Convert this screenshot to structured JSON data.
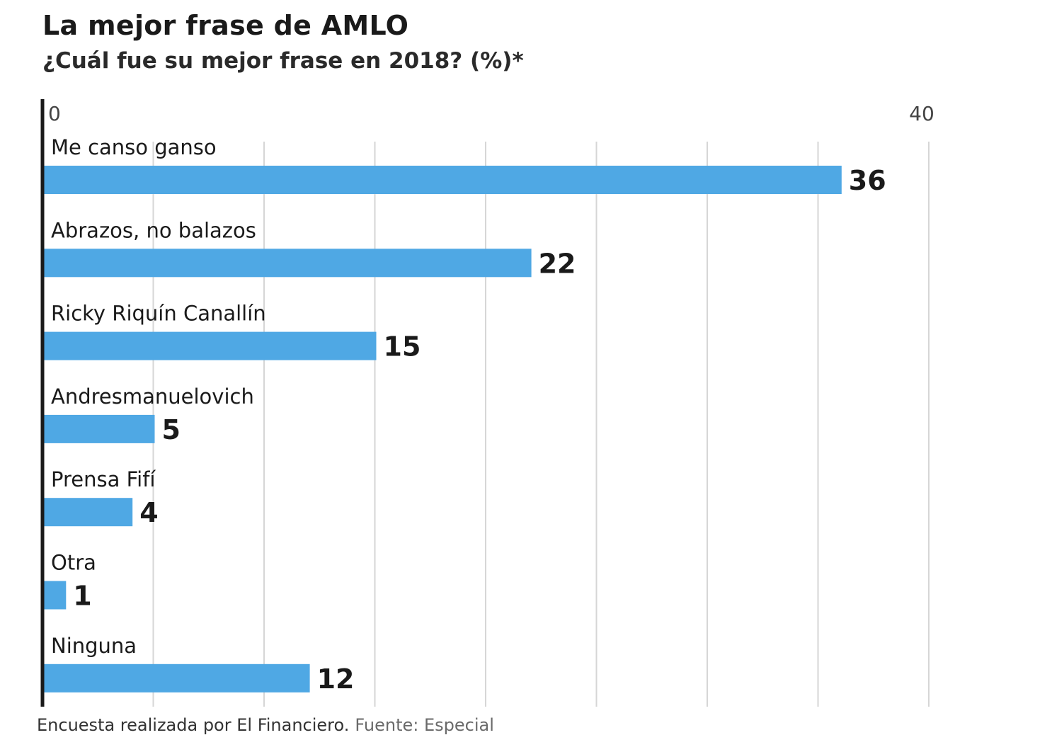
{
  "header": {
    "title": "La mejor frase de AMLO",
    "subtitle": "¿Cuál fue su mejor frase en 2018?  (%)*"
  },
  "footer": {
    "note": "Encuesta realizada por El Financiero.",
    "source": "Fuente: Especial"
  },
  "colors": {
    "bar": "#4fa8e4",
    "grid": "#d6d6d6",
    "axis": "#1a1a1a",
    "label": "#1a1a1a"
  },
  "chart_data": {
    "type": "bar",
    "orientation": "horizontal",
    "categories": [
      "Me canso ganso",
      "Abrazos, no balazos",
      "Ricky Riquín Canallín",
      "Andresmanuelovich",
      "Prensa Fifí",
      "Otra",
      "Ninguna"
    ],
    "values": [
      36,
      22,
      15,
      5,
      4,
      1,
      12
    ],
    "xlim": [
      0,
      40
    ],
    "tick_labels": [
      "0",
      "40"
    ],
    "gridline_step": 5,
    "grid": true,
    "legend": "none"
  }
}
